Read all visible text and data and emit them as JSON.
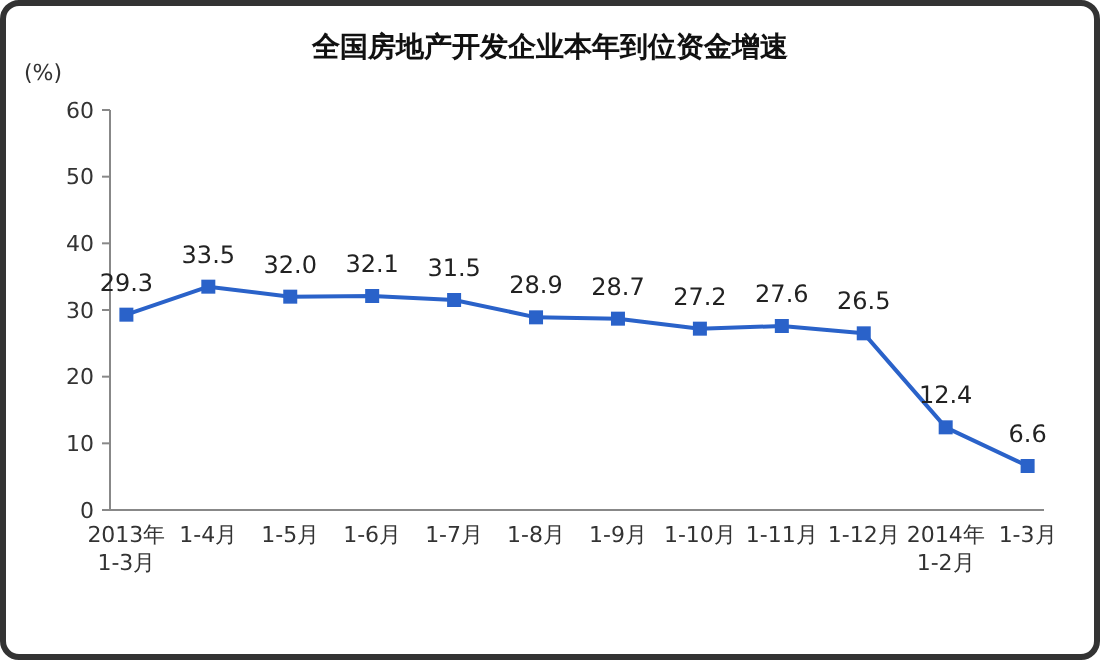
{
  "chart_data": {
    "type": "line",
    "title": "全国房地产开发企业本年到位资金增速",
    "ylabel": "(%)",
    "categories": [
      "2013年\n1-3月",
      "1-4月",
      "1-5月",
      "1-6月",
      "1-7月",
      "1-8月",
      "1-9月",
      "1-10月",
      "1-11月",
      "1-12月",
      "2014年\n1-2月",
      "1-3月"
    ],
    "series": [
      {
        "color": "#2a62c9",
        "values": [
          29.3,
          33.5,
          32.0,
          32.1,
          31.5,
          28.9,
          28.7,
          27.2,
          27.6,
          26.5,
          12.4,
          6.6
        ]
      }
    ],
    "value_labels": [
      "29.3",
      "33.5",
      "32.0",
      "32.1",
      "31.5",
      "28.9",
      "28.7",
      "27.2",
      "27.6",
      "26.5",
      "12.4",
      "6.6"
    ],
    "ylim": [
      0,
      60
    ],
    "yticks": [
      0,
      10,
      20,
      30,
      40,
      50,
      60
    ],
    "grid": false,
    "marker": "square",
    "line_style": "solid"
  }
}
